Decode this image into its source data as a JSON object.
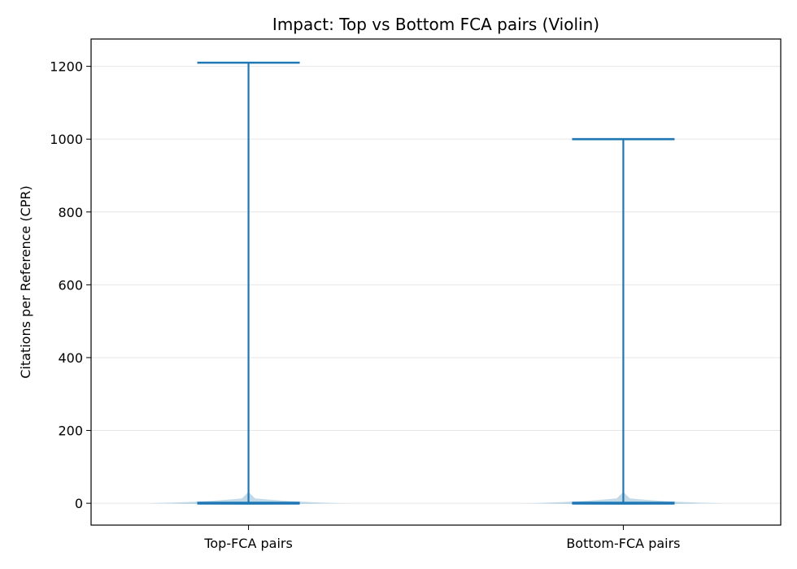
{
  "chart_data": {
    "type": "violin",
    "title": "Impact: Top vs Bottom FCA pairs (Violin)",
    "xlabel": "",
    "ylabel": "Citations per Reference (CPR)",
    "categories": [
      "Top-FCA pairs",
      "Bottom-FCA pairs"
    ],
    "ylim": [
      -60,
      1275
    ],
    "yticks": [
      0,
      200,
      400,
      600,
      800,
      1000,
      1200
    ],
    "grid": "horizontal",
    "series": [
      {
        "category": "Top-FCA pairs",
        "min": 0,
        "max": 1210,
        "median": 2
      },
      {
        "category": "Bottom-FCA pairs",
        "min": 0,
        "max": 1000,
        "median": 2
      }
    ],
    "colors": {
      "line": "#1f77b4",
      "body": "#aecde0",
      "grid": "#e6e6e6"
    }
  }
}
